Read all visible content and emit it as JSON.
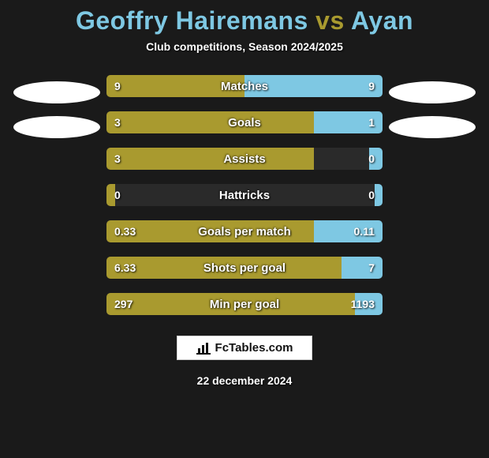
{
  "title": {
    "player1": "Geoffry Hairemans",
    "vs": " vs ",
    "player2": "Ayan"
  },
  "subtitle": "Club competitions, Season 2024/2025",
  "colors": {
    "player1": "#a99a2f",
    "player2": "#7ec8e3",
    "title_player1": "#7ec8e3",
    "title_vs": "#a99a2f",
    "title_player2": "#7ec8e3",
    "background": "#1a1a1a",
    "bar_empty": "#2a2a2a",
    "text": "#ffffff"
  },
  "stats": [
    {
      "label": "Matches",
      "left_value": "9",
      "right_value": "9",
      "left_pct": 50,
      "right_pct": 50
    },
    {
      "label": "Goals",
      "left_value": "3",
      "right_value": "1",
      "left_pct": 75,
      "right_pct": 25
    },
    {
      "label": "Assists",
      "left_value": "3",
      "right_value": "0",
      "left_pct": 75,
      "right_pct": 5
    },
    {
      "label": "Hattricks",
      "left_value": "0",
      "right_value": "0",
      "left_pct": 3,
      "right_pct": 3
    },
    {
      "label": "Goals per match",
      "left_value": "0.33",
      "right_value": "0.11",
      "left_pct": 75,
      "right_pct": 25
    },
    {
      "label": "Shots per goal",
      "left_value": "6.33",
      "right_value": "7",
      "left_pct": 85,
      "right_pct": 15
    },
    {
      "label": "Min per goal",
      "left_value": "297",
      "right_value": "1193",
      "left_pct": 90,
      "right_pct": 10
    }
  ],
  "footer": {
    "brand": "FcTables.com",
    "date": "22 december 2024"
  }
}
